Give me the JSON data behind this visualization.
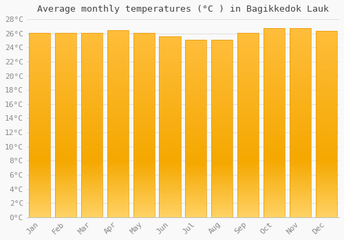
{
  "title": "Average monthly temperatures (°C ) in Bagikkedok Lauk",
  "months": [
    "Jan",
    "Feb",
    "Mar",
    "Apr",
    "May",
    "Jun",
    "Jul",
    "Aug",
    "Sep",
    "Oct",
    "Nov",
    "Dec"
  ],
  "values": [
    26.1,
    26.1,
    26.1,
    26.5,
    26.1,
    25.6,
    25.1,
    25.1,
    26.1,
    26.7,
    26.7,
    26.4
  ],
  "bar_color_top": "#FFC84A",
  "bar_color_mid": "#F5A800",
  "bar_color_bot": "#FFD97A",
  "ylim": [
    0,
    28
  ],
  "ytick_step": 2,
  "background_color": "#f9f9f9",
  "grid_color": "#e0e0e0",
  "title_fontsize": 9.5,
  "tick_fontsize": 8,
  "title_color": "#444444",
  "tick_color": "#888888"
}
